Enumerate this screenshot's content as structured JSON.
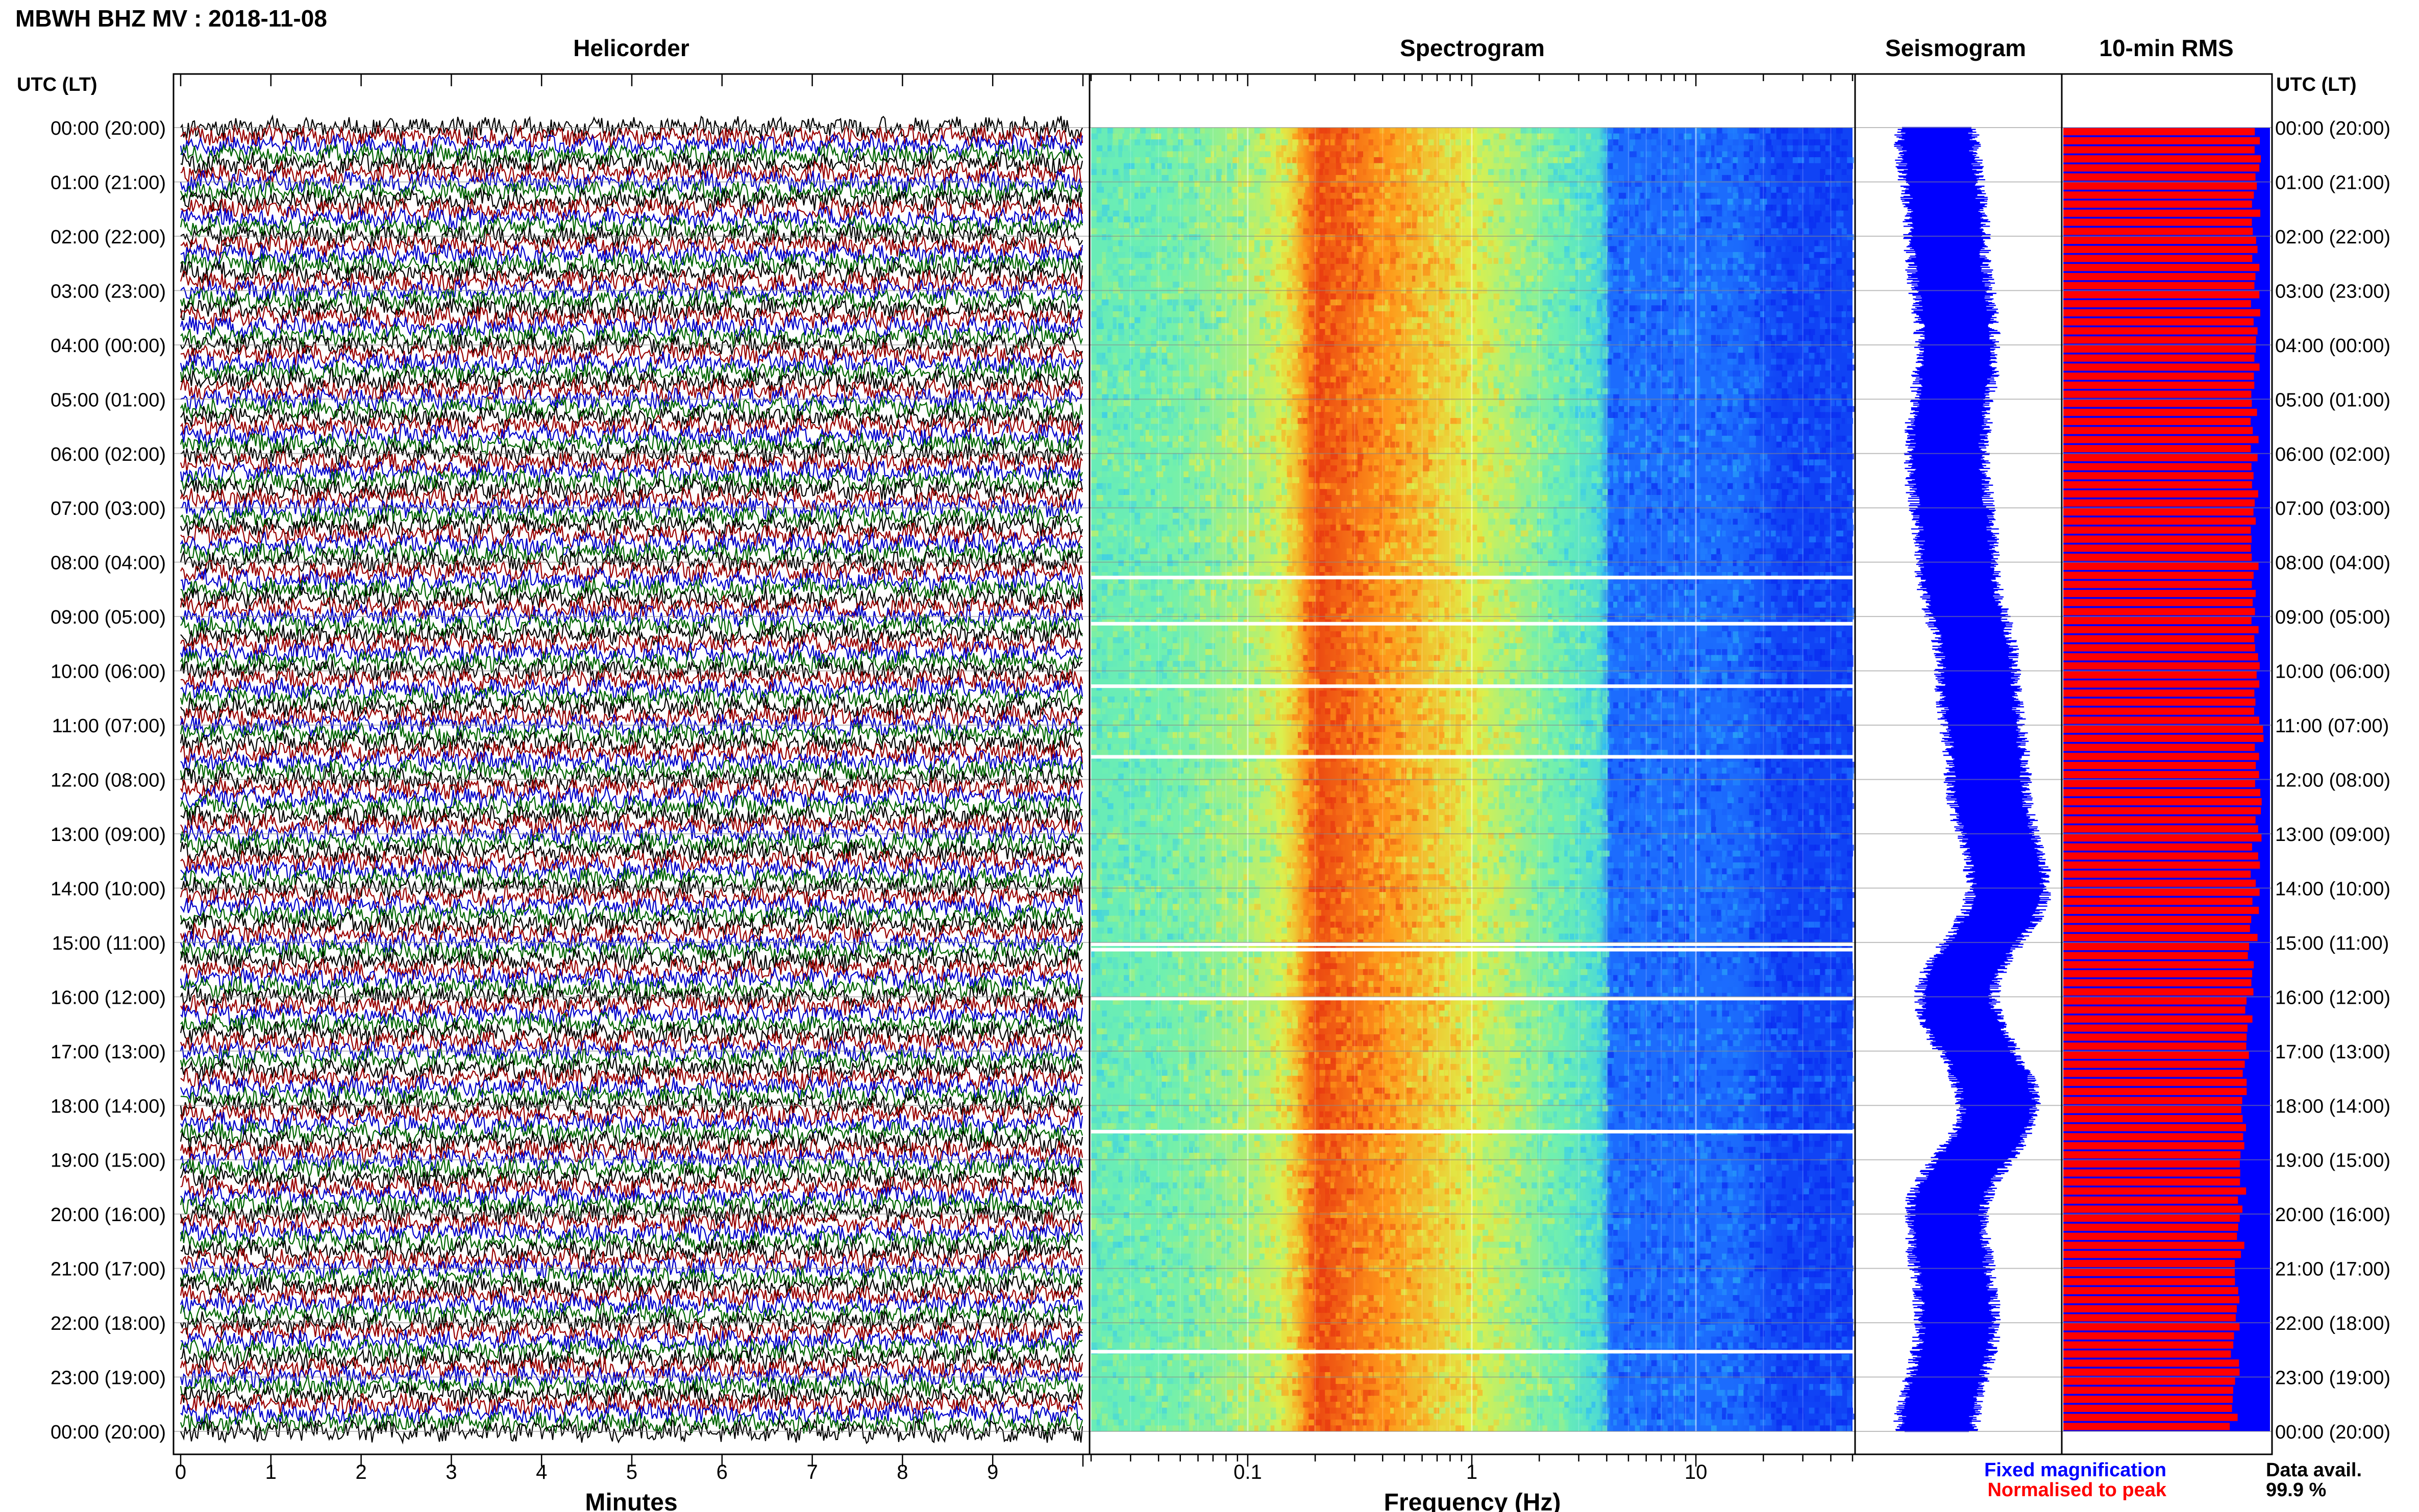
{
  "header": {
    "station_title": "MBWH BHZ MV : 2018-11-08"
  },
  "panels": {
    "helicorder_title": "Helicorder",
    "spectrogram_title": "Spectrogram",
    "seismogram_title": "Seismogram",
    "rms_title": "10-min RMS"
  },
  "time_axis": {
    "label_left": "UTC (LT)",
    "label_right": "UTC (LT)",
    "rows": [
      "00:00 (20:00)",
      "01:00 (21:00)",
      "02:00 (22:00)",
      "03:00 (23:00)",
      "04:00 (00:00)",
      "05:00 (01:00)",
      "06:00 (02:00)",
      "07:00 (03:00)",
      "08:00 (04:00)",
      "09:00 (05:00)",
      "10:00 (06:00)",
      "11:00 (07:00)",
      "12:00 (08:00)",
      "13:00 (09:00)",
      "14:00 (10:00)",
      "15:00 (11:00)",
      "16:00 (12:00)",
      "17:00 (13:00)",
      "18:00 (14:00)",
      "19:00 (15:00)",
      "20:00 (16:00)",
      "21:00 (17:00)",
      "22:00 (18:00)",
      "23:00 (19:00)",
      "00:00 (20:00)"
    ]
  },
  "helicorder_axis": {
    "ticks": [
      "0",
      "1",
      "2",
      "3",
      "4",
      "5",
      "6",
      "7",
      "8",
      "9"
    ],
    "xlabel": "Minutes"
  },
  "spectrogram_axis": {
    "ticks": [
      "0.1",
      "1",
      "10"
    ],
    "xlabel": "Frequency (Hz)"
  },
  "legend": {
    "fixed_magnification": "Fixed magnification",
    "normalised_to_peak": "Normalised to peak",
    "data_avail_label": "Data avail.",
    "data_avail_value": "99.9 %",
    "colors": {
      "fixed": "#0000ff",
      "normalised": "#ff0000"
    }
  },
  "chart_data": [
    {
      "type": "line",
      "title": "Helicorder",
      "xlabel": "Minutes",
      "xlim": [
        0,
        10
      ],
      "rows_per_hour": 6,
      "trace_colors": [
        "#000000",
        "#990000",
        "#0000cc",
        "#006600"
      ]
    },
    {
      "type": "heatmap",
      "title": "Spectrogram",
      "xlabel": "Frequency (Hz)",
      "x_scale": "log",
      "xlim": [
        0.02,
        50
      ],
      "peak_frequency_hz": 0.22,
      "colormap": [
        "#0a2cf0",
        "#1f78ff",
        "#33c8f0",
        "#6ff0b0",
        "#dff04a",
        "#ff9a1a",
        "#e83a10"
      ]
    },
    {
      "type": "line",
      "title": "Seismogram",
      "y_hours": [
        0,
        2,
        4,
        6,
        8,
        10,
        12,
        14,
        16,
        18,
        20,
        22,
        24
      ],
      "center_offset": [
        0.0,
        0.05,
        0.1,
        0.05,
        0.1,
        0.2,
        0.25,
        0.35,
        0.1,
        0.3,
        0.05,
        0.1,
        0.0
      ],
      "color": "#0000ff"
    },
    {
      "type": "bar",
      "title": "10-min RMS",
      "orientation": "horizontal",
      "series": [
        {
          "name": "Fixed magnification",
          "color": "#0000ff"
        },
        {
          "name": "Normalised to peak",
          "color": "#ff0000"
        }
      ],
      "normalised_value_at_hours": {
        "hours": [
          0,
          6,
          12,
          18,
          24
        ],
        "values": [
          0.94,
          0.92,
          0.95,
          0.88,
          0.82
        ]
      }
    }
  ]
}
